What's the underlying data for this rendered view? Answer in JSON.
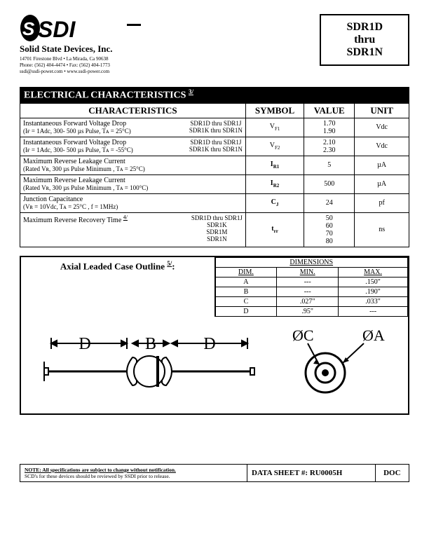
{
  "header": {
    "company": "Solid State Devices, Inc.",
    "addr1": "14701 Firestone Blvd  •  La Mirada, Ca 90638",
    "addr2": "Phone: (562) 404-4474  •  Fax: (562) 404-1773",
    "addr3": "ssdi@ssdi-power.com  •  www.ssdi-power.com",
    "title1": "SDR1D",
    "title2": "thru",
    "title3": "SDR1N"
  },
  "section_title": "ELECTRICAL CHARACTERISTICS",
  "section_note": "3/",
  "cols": {
    "char": "CHARACTERISTICS",
    "sym": "SYMBOL",
    "val": "VALUE",
    "unit": "UNIT"
  },
  "rows": [
    {
      "title": "Instantaneous Forward Voltage Drop",
      "cond": "(Iғ = 1Adc, 300- 500 µs Pulse, Tᴀ = 25°C)",
      "variants": "SDR1D thru SDR1J\nSDR1K thru SDR1N",
      "sym": "V",
      "sub": "F1",
      "vals": "1.70\n1.90",
      "unit": "Vdc"
    },
    {
      "title": "Instantaneous Forward Voltage Drop",
      "cond": "(Iғ = 1Adc, 300- 500 µs Pulse, Tᴀ = -55°C)",
      "variants": "SDR1D thru SDR1J\nSDR1K thru SDR1N",
      "sym": "V",
      "sub": "F2",
      "vals": "2.10\n2.30",
      "unit": "Vdc"
    },
    {
      "title": "Maximum Reverse Leakage Current",
      "cond": "(Rated Vʀ, 300 µs Pulse Minimum , Tᴀ = 25°C)",
      "variants": "",
      "sym": "I",
      "sub": "R1",
      "bold": true,
      "vals": "5",
      "unit": "µA"
    },
    {
      "title": "Maximum Reverse Leakage Current",
      "cond": "(Rated Vʀ, 300 µs Pulse Minimum , Tᴀ = 100°C)",
      "variants": "",
      "sym": "I",
      "sub": "R2",
      "bold": true,
      "vals": "500",
      "unit": "µA"
    },
    {
      "title": "Junction Capacitance",
      "cond": "(Vʀ = 10Vdc, Tᴀ = 25°C , f = 1MHz)",
      "variants": "",
      "sym": "C",
      "sub": "J",
      "bold": true,
      "vals": "24",
      "unit": "pf"
    },
    {
      "title": "Maximum Reverse Recovery Time",
      "title_sup": "4/",
      "cond": "",
      "variants": "SDR1D thru SDR1J\nSDR1K\nSDR1M\nSDR1N",
      "sym": "t",
      "sub": "rr",
      "bold": true,
      "vals": "50\n60\n70\n80",
      "unit": "ns"
    }
  ],
  "outline_title": "Axial Leaded Case Outline",
  "outline_note": "5/",
  "dim_head": "DIMENSIONS",
  "dim_cols": {
    "d": "DIM.",
    "min": "MIN.",
    "max": "MAX."
  },
  "dims": [
    {
      "d": "A",
      "min": "---",
      "max": ".150\""
    },
    {
      "d": "B",
      "min": "---",
      "max": ".190\""
    },
    {
      "d": "C",
      "min": ".027\"",
      "max": ".033\""
    },
    {
      "d": "D",
      "min": ".95\"",
      "max": "---"
    }
  ],
  "diagram": {
    "D": "D",
    "B": "B",
    "OC": "ØC",
    "OA": "ØA"
  },
  "footer": {
    "note1": "NOTE:  All specifications are subject to change without notification.",
    "note2": "SCD's for these devices should be reviewed by SSDI prior to release.",
    "ds_label": "DATA SHEET #:",
    "ds_num": "RU0005H",
    "doc": "DOC"
  }
}
